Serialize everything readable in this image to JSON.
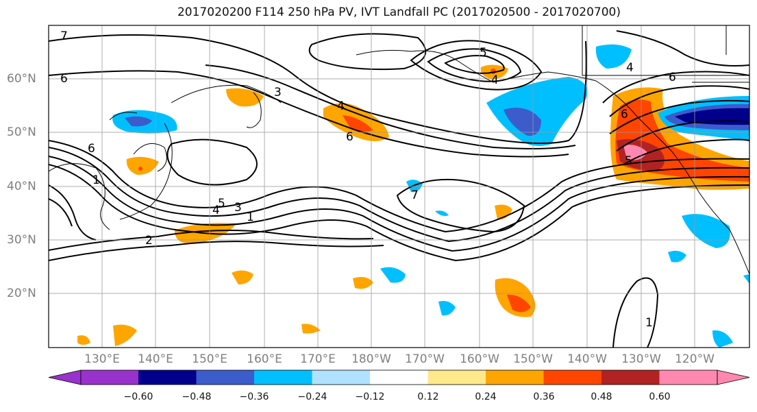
{
  "title": "2017020200 F114 250 hPa PV, IVT Landfall PC (2017020500 - 2017020700)",
  "map": {
    "lon_range": [
      120,
      252
    ],
    "lat_range": [
      10,
      70
    ],
    "lat_ticks": [
      "20°N",
      "30°N",
      "40°N",
      "50°N",
      "60°N"
    ],
    "lon_ticks": [
      "130°E",
      "140°E",
      "150°E",
      "160°E",
      "170°E",
      "180°W",
      "170°W",
      "160°W",
      "150°W",
      "140°W",
      "130°W",
      "120°W"
    ],
    "contour_labels": [
      "7",
      "6",
      "6",
      "6",
      "5",
      "4",
      "4",
      "4",
      "3",
      "3",
      "2",
      "1",
      "1",
      "6",
      "5",
      "4",
      "6",
      "5",
      "1",
      "7"
    ]
  },
  "colorbar": {
    "colors": [
      "#9932cc",
      "#00008b",
      "#3c5ccc",
      "#00bfff",
      "#b0e2ff",
      "#ffffff",
      "#ffe98a",
      "#ffa500",
      "#ff4500",
      "#b22222",
      "#ff88b0",
      "#ff88b0"
    ],
    "tick_labels": [
      "−0.60",
      "−0.48",
      "−0.36",
      "−0.24",
      "−0.12",
      "0.12",
      "0.24",
      "0.36",
      "0.48",
      "0.60"
    ]
  }
}
